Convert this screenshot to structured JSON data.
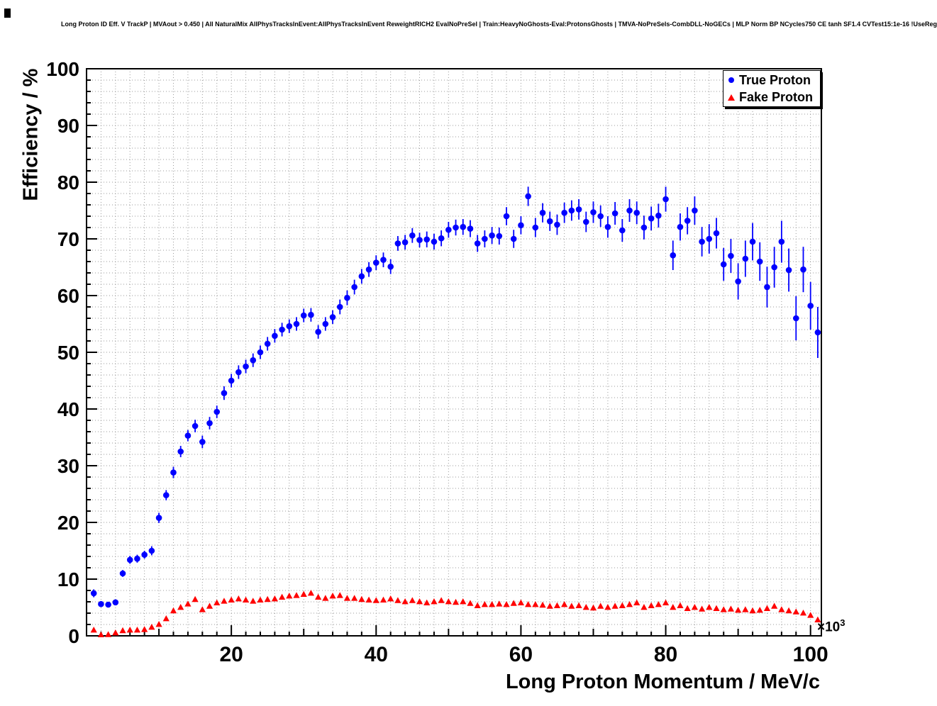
{
  "page": {
    "background": "#ffffff"
  },
  "legend": {
    "items": [
      {
        "label": "True Proton",
        "marker": "circle",
        "color": "#0000ff"
      },
      {
        "label": "Fake Proton",
        "marker": "triangle",
        "color": "#ff0000"
      }
    ]
  },
  "chart_data": {
    "type": "scatter",
    "title": "Long Proton ID Eff. V TrackP | MVAout > 0.450 | All NaturalMix AllPhysTracksInEvent:AllPhysTracksInEvent ReweightRICH2 EvalNoPreSel | Train:HeavyNoGhosts-Eval:ProtonsGhosts | TMVA-NoPreSels-CombDLL-NoGECs | MLP Norm BP NCycles750 CE tanh SF1.4 CVTest15:1e-16 !UseReg",
    "xlabel": "Long Proton Momentum / MeV/c",
    "ylabel": "Efficiency / %",
    "x_exponent": {
      "base": "×10",
      "power": "3"
    },
    "x_units_note": "momentum in units of 10^3 MeV/c",
    "xlim": [
      0,
      101.5
    ],
    "ylim": [
      0,
      100
    ],
    "xticks": [
      20,
      40,
      60,
      80,
      100
    ],
    "yticks": [
      0,
      10,
      20,
      30,
      40,
      50,
      60,
      70,
      80,
      90,
      100
    ],
    "grid": true,
    "legend_position": "top-right",
    "error_bars": true,
    "x": [
      1,
      2,
      3,
      4,
      5,
      6,
      7,
      8,
      9,
      10,
      11,
      12,
      13,
      14,
      15,
      16,
      17,
      18,
      19,
      20,
      21,
      22,
      23,
      24,
      25,
      26,
      27,
      28,
      29,
      30,
      31,
      32,
      33,
      34,
      35,
      36,
      37,
      38,
      39,
      40,
      41,
      42,
      43,
      44,
      45,
      46,
      47,
      48,
      49,
      50,
      51,
      52,
      53,
      54,
      55,
      56,
      57,
      58,
      59,
      60,
      61,
      62,
      63,
      64,
      65,
      66,
      67,
      68,
      69,
      70,
      71,
      72,
      73,
      74,
      75,
      76,
      77,
      78,
      79,
      80,
      81,
      82,
      83,
      84,
      85,
      86,
      87,
      88,
      89,
      90,
      91,
      92,
      93,
      94,
      95,
      96,
      97,
      98,
      99,
      100,
      101
    ],
    "series": [
      {
        "name": "True Proton",
        "color": "#0000ff",
        "marker": "circle",
        "values": [
          7.5,
          5.6,
          5.5,
          5.9,
          11.0,
          13.4,
          13.6,
          14.3,
          15.0,
          20.8,
          24.8,
          28.8,
          32.5,
          35.3,
          37.0,
          34.2,
          37.5,
          39.5,
          42.8,
          45.0,
          46.5,
          47.5,
          48.6,
          50.0,
          51.5,
          52.9,
          54.0,
          54.6,
          55.0,
          56.5,
          56.6,
          53.6,
          55.0,
          56.2,
          58.0,
          59.6,
          61.5,
          63.4,
          64.6,
          65.8,
          66.3,
          65.1,
          69.2,
          69.4,
          70.6,
          69.8,
          69.9,
          69.5,
          70.1,
          71.6,
          72.0,
          72.1,
          71.8,
          69.2,
          70.0,
          70.6,
          70.5,
          74.0,
          70.0,
          72.4,
          77.5,
          72.0,
          74.6,
          73.1,
          72.5,
          74.6,
          75.0,
          75.2,
          73.0,
          74.7,
          74.0,
          72.1,
          74.5,
          71.5,
          75.0,
          74.6,
          72.0,
          73.6,
          74.1,
          77.0,
          67.1,
          72.1,
          73.2,
          75.0,
          69.5,
          70.0,
          71.0,
          65.5,
          67.0,
          62.5,
          66.5,
          69.5,
          66.0,
          61.5,
          65.0,
          69.5,
          64.5,
          56.0,
          64.6,
          58.2,
          53.5
        ],
        "errors": [
          0.7,
          0.5,
          0.5,
          0.5,
          0.6,
          0.7,
          0.7,
          0.7,
          0.8,
          0.9,
          0.9,
          1.0,
          1.0,
          1.0,
          1.1,
          1.1,
          1.1,
          1.1,
          1.2,
          1.2,
          1.2,
          1.2,
          1.2,
          1.2,
          1.2,
          1.2,
          1.2,
          1.2,
          1.2,
          1.2,
          1.2,
          1.2,
          1.2,
          1.2,
          1.3,
          1.3,
          1.3,
          1.3,
          1.3,
          1.3,
          1.3,
          1.3,
          1.3,
          1.3,
          1.3,
          1.3,
          1.4,
          1.4,
          1.4,
          1.4,
          1.4,
          1.4,
          1.5,
          1.5,
          1.5,
          1.5,
          1.5,
          1.6,
          1.6,
          1.6,
          1.7,
          1.7,
          1.7,
          1.7,
          1.8,
          1.8,
          1.8,
          1.8,
          1.8,
          1.9,
          1.9,
          1.9,
          2.0,
          2.0,
          2.0,
          2.0,
          2.1,
          2.1,
          2.1,
          2.2,
          2.6,
          2.4,
          2.4,
          2.5,
          2.6,
          2.6,
          2.7,
          2.9,
          3.0,
          3.2,
          3.2,
          3.3,
          3.4,
          3.6,
          3.6,
          3.7,
          3.8,
          3.9,
          4.0,
          4.2,
          4.5
        ]
      },
      {
        "name": "Fake Proton",
        "color": "#ff0000",
        "marker": "triangle",
        "values": [
          1.0,
          0.15,
          0.2,
          0.5,
          0.9,
          1.0,
          1.0,
          1.1,
          1.5,
          2.0,
          3.0,
          4.4,
          5.0,
          5.6,
          6.4,
          4.6,
          5.2,
          5.8,
          6.1,
          6.3,
          6.5,
          6.3,
          6.1,
          6.3,
          6.4,
          6.5,
          6.8,
          7.0,
          7.1,
          7.3,
          7.5,
          6.8,
          6.6,
          7.0,
          7.1,
          6.6,
          6.6,
          6.4,
          6.3,
          6.2,
          6.3,
          6.5,
          6.2,
          6.0,
          6.2,
          6.0,
          5.8,
          6.0,
          6.2,
          6.0,
          5.9,
          6.0,
          5.7,
          5.3,
          5.5,
          5.5,
          5.6,
          5.5,
          5.7,
          5.8,
          5.5,
          5.5,
          5.4,
          5.2,
          5.3,
          5.5,
          5.2,
          5.3,
          5.0,
          4.9,
          5.2,
          5.0,
          5.2,
          5.3,
          5.5,
          5.8,
          5.0,
          5.3,
          5.5,
          5.8,
          5.0,
          5.3,
          4.8,
          5.0,
          4.7,
          5.0,
          4.8,
          4.6,
          4.7,
          4.5,
          4.6,
          4.4,
          4.5,
          4.8,
          5.2,
          4.6,
          4.4,
          4.2,
          4.0,
          3.6,
          2.8
        ],
        "errors": 0.35
      }
    ]
  }
}
